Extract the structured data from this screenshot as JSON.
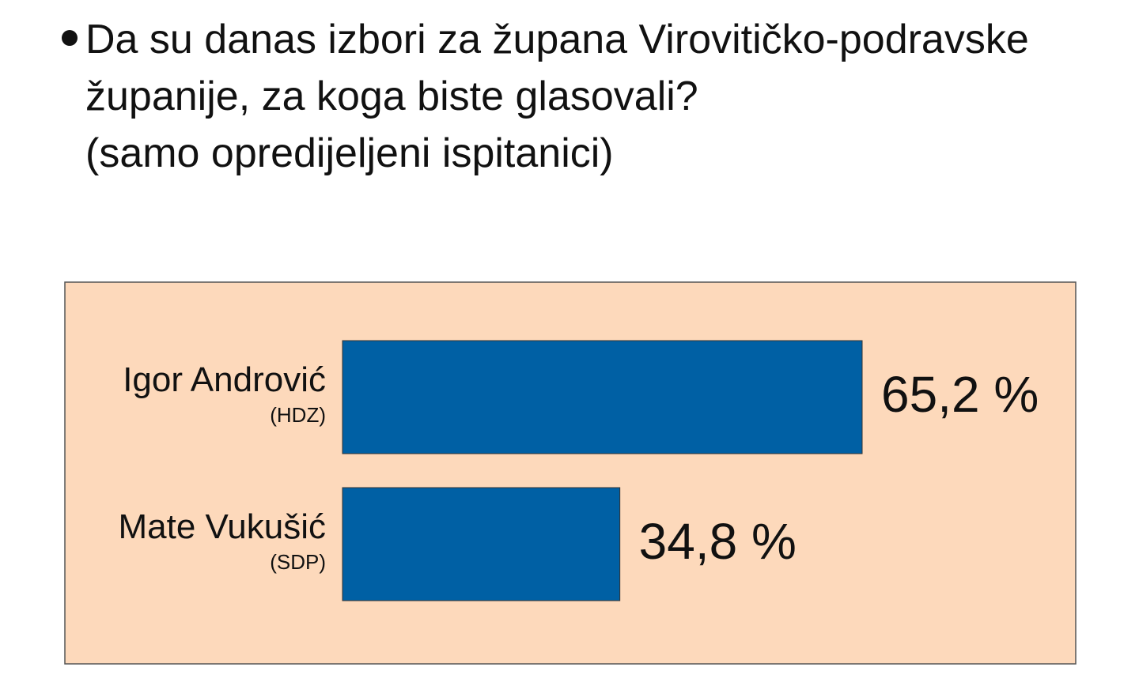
{
  "chart_data": {
    "type": "bar",
    "orientation": "horizontal",
    "title": "Da su danas izbori za župana Virovitičko-podravske županije, za koga biste glasovali?",
    "subtitle": "(samo opredijeljeni ispitanici)",
    "categories": [
      "Igor Andrović",
      "Mate Vukušić"
    ],
    "category_sublabels": [
      "(HDZ)",
      "(SDP)"
    ],
    "values": [
      65.2,
      34.8
    ],
    "value_labels": [
      "65,2 %",
      "34,8 %"
    ],
    "color": "#0060a4",
    "background": "#fdd9bb"
  }
}
